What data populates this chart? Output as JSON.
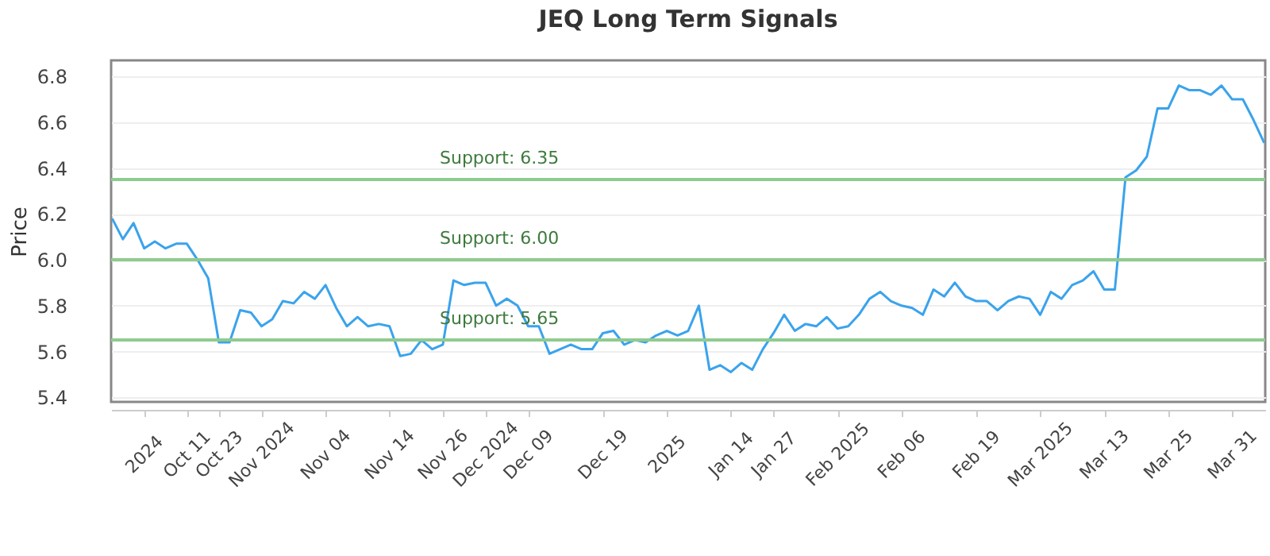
{
  "chart_data": {
    "type": "line",
    "title": "JEQ Long Term Signals",
    "ylabel": "Price",
    "categories": [
      null,
      null,
      null,
      "2024",
      null,
      null,
      null,
      "Oct 11",
      null,
      null,
      "Oct 23",
      null,
      null,
      null,
      "Nov 2024",
      null,
      null,
      null,
      null,
      null,
      "Nov 04",
      null,
      null,
      null,
      null,
      null,
      "Nov 14",
      null,
      null,
      null,
      null,
      "Nov 26",
      null,
      null,
      null,
      "Dec 2024",
      null,
      null,
      null,
      "Dec 09",
      null,
      null,
      null,
      null,
      null,
      null,
      "Dec 19",
      null,
      null,
      null,
      null,
      null,
      "2025",
      null,
      null,
      null,
      null,
      null,
      "Jan 14",
      null,
      null,
      null,
      "Jan 27",
      null,
      null,
      null,
      null,
      null,
      "Feb 2025",
      null,
      null,
      null,
      null,
      null,
      "Feb 06",
      null,
      null,
      null,
      null,
      null,
      null,
      "Feb 19",
      null,
      null,
      null,
      null,
      null,
      "Mar 2025",
      null,
      null,
      null,
      null,
      null,
      "Mar 13",
      null,
      null,
      null,
      null,
      null,
      "Mar 25",
      null,
      null,
      null,
      null,
      null,
      "Mar 31",
      null,
      null,
      null
    ],
    "series": [
      {
        "color": "#3aa3ec",
        "values": [
          6.18,
          6.09,
          6.16,
          6.05,
          6.08,
          6.05,
          6.07,
          6.07,
          6.0,
          5.92,
          5.64,
          5.64,
          5.78,
          5.77,
          5.71,
          5.74,
          5.82,
          5.81,
          5.86,
          5.83,
          5.89,
          5.79,
          5.71,
          5.75,
          5.71,
          5.72,
          5.71,
          5.58,
          5.59,
          5.65,
          5.61,
          5.63,
          5.91,
          5.89,
          5.9,
          5.9,
          5.8,
          5.83,
          5.8,
          5.71,
          5.71,
          5.59,
          5.61,
          5.63,
          5.61,
          5.61,
          5.68,
          5.69,
          5.63,
          5.65,
          5.64,
          5.67,
          5.69,
          5.67,
          5.69,
          5.8,
          5.52,
          5.54,
          5.51,
          5.55,
          5.52,
          5.61,
          5.68,
          5.76,
          5.69,
          5.72,
          5.71,
          5.75,
          5.7,
          5.71,
          5.76,
          5.83,
          5.86,
          5.82,
          5.8,
          5.79,
          5.76,
          5.87,
          5.84,
          5.9,
          5.84,
          5.82,
          5.82,
          5.78,
          5.82,
          5.84,
          5.83,
          5.76,
          5.86,
          5.83,
          5.89,
          5.91,
          5.95,
          5.87,
          5.87,
          6.36,
          6.39,
          6.45,
          6.66,
          6.66,
          6.76,
          6.74,
          6.74,
          6.72,
          6.76,
          6.7,
          6.7,
          6.61,
          6.51
        ]
      }
    ],
    "ylim": [
      5.38,
      6.87
    ],
    "yticks": [
      5.4,
      5.6,
      5.8,
      {
        "value": 6,
        "label": "6.0"
      },
      6.2,
      6.4,
      6.6,
      6.8
    ],
    "grid": "y",
    "ref_lines": [
      {
        "axis": "y",
        "value": 6.35,
        "label": "Support: 6.35",
        "color": "#8fcb8f"
      },
      {
        "axis": "y",
        "value": 6.0,
        "label": "Support: 6.00",
        "color": "#8fcb8f"
      },
      {
        "axis": "y",
        "value": 5.65,
        "label": "Support: 5.65",
        "color": "#8fcb8f"
      }
    ]
  }
}
